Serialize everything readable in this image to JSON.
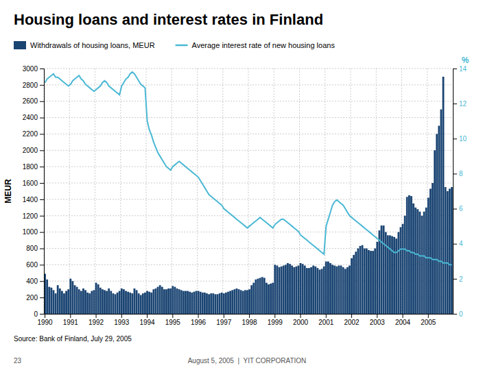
{
  "chart_data": {
    "type": "bar",
    "title": "Housing loans and interest rates in Finland",
    "ylabel": "MEUR",
    "y2label": "%",
    "annotations": [
      "Source: Bank of Finland, July 29, 2005",
      "23",
      "August 5, 2005  |  YIT CORPORATION"
    ],
    "grid": true,
    "legend": "top",
    "ylim": [
      0,
      3000
    ],
    "yticks": [
      0,
      200,
      400,
      600,
      800,
      1000,
      1200,
      1400,
      1600,
      1800,
      2000,
      2200,
      2400,
      2600,
      2800,
      3000
    ],
    "y2lim": [
      0,
      14
    ],
    "y2ticks": [
      0,
      2,
      4,
      6,
      8,
      10,
      12,
      14
    ],
    "categories": [
      "1990",
      null,
      null,
      null,
      null,
      null,
      null,
      null,
      null,
      null,
      null,
      null,
      "1991",
      null,
      null,
      null,
      null,
      null,
      null,
      null,
      null,
      null,
      null,
      null,
      "1992",
      null,
      null,
      null,
      null,
      null,
      null,
      null,
      null,
      null,
      null,
      null,
      "1993",
      null,
      null,
      null,
      null,
      null,
      null,
      null,
      null,
      null,
      null,
      null,
      "1994",
      null,
      null,
      null,
      null,
      null,
      null,
      null,
      null,
      null,
      null,
      null,
      "1995",
      null,
      null,
      null,
      null,
      null,
      null,
      null,
      null,
      null,
      null,
      null,
      "1996",
      null,
      null,
      null,
      null,
      null,
      null,
      null,
      null,
      null,
      null,
      null,
      "1997",
      null,
      null,
      null,
      null,
      null,
      null,
      null,
      null,
      null,
      null,
      null,
      "1998",
      null,
      null,
      null,
      null,
      null,
      null,
      null,
      null,
      null,
      null,
      null,
      "1999",
      null,
      null,
      null,
      null,
      null,
      null,
      null,
      null,
      null,
      null,
      null,
      "2000",
      null,
      null,
      null,
      null,
      null,
      null,
      null,
      null,
      null,
      null,
      null,
      "2001",
      null,
      null,
      null,
      null,
      null,
      null,
      null,
      null,
      null,
      null,
      null,
      "2002",
      null,
      null,
      null,
      null,
      null,
      null,
      null,
      null,
      null,
      null,
      null,
      "2003",
      null,
      null,
      null,
      null,
      null,
      null,
      null,
      null,
      null,
      null,
      null,
      "2004",
      null,
      null,
      null,
      null,
      null,
      null,
      null,
      null,
      null,
      null,
      null,
      "2005",
      null,
      null,
      null,
      null,
      null,
      null,
      null,
      null,
      null,
      null,
      null
    ],
    "series": [
      {
        "name": "Withdrawals of housing loans, MEUR",
        "type": "bar",
        "color": "#1a4472",
        "values": [
          490,
          420,
          330,
          320,
          290,
          250,
          350,
          310,
          280,
          250,
          280,
          300,
          430,
          400,
          350,
          330,
          300,
          280,
          310,
          290,
          260,
          250,
          280,
          290,
          380,
          360,
          320,
          300,
          290,
          280,
          310,
          280,
          250,
          240,
          260,
          280,
          310,
          300,
          280,
          270,
          260,
          250,
          310,
          290,
          250,
          230,
          250,
          260,
          280,
          270,
          260,
          300,
          310,
          330,
          350,
          330,
          300,
          300,
          310,
          310,
          340,
          330,
          310,
          300,
          290,
          280,
          280,
          280,
          270,
          260,
          270,
          280,
          280,
          270,
          260,
          260,
          250,
          240,
          250,
          250,
          240,
          240,
          250,
          260,
          250,
          260,
          270,
          280,
          290,
          300,
          310,
          300,
          290,
          280,
          290,
          290,
          300,
          350,
          380,
          420,
          430,
          440,
          450,
          440,
          380,
          360,
          370,
          380,
          600,
          590,
          570,
          580,
          590,
          600,
          620,
          610,
          590,
          570,
          580,
          590,
          620,
          610,
          590,
          560,
          560,
          570,
          590,
          580,
          560,
          540,
          550,
          580,
          640,
          640,
          620,
          600,
          590,
          580,
          590,
          590,
          570,
          550,
          570,
          590,
          680,
          720,
          760,
          800,
          830,
          840,
          800,
          800,
          780,
          770,
          770,
          800,
          880,
          1020,
          1080,
          1080,
          1000,
          960,
          960,
          950,
          940,
          920,
          1000,
          1060,
          1100,
          1200,
          1430,
          1450,
          1440,
          1350,
          1300,
          1280,
          1250,
          1200,
          1250,
          1300,
          1420,
          1530,
          1600,
          2000,
          2200,
          2300,
          2500,
          2900,
          1550,
          1500,
          1530,
          1550
        ]
      },
      {
        "name": "Average interest rate of new housing loans",
        "type": "line",
        "axis": "y2",
        "color": "#4ab8d4",
        "values": [
          13.2,
          13.4,
          13.5,
          13.6,
          13.7,
          13.5,
          13.5,
          13.4,
          13.3,
          13.2,
          13.1,
          13.0,
          13.1,
          13.3,
          13.4,
          13.5,
          13.6,
          13.4,
          13.3,
          13.1,
          13.0,
          12.9,
          12.8,
          12.7,
          12.8,
          12.9,
          13.0,
          13.2,
          13.3,
          13.2,
          13.0,
          12.9,
          12.8,
          12.7,
          12.6,
          12.5,
          13.0,
          13.2,
          13.4,
          13.5,
          13.7,
          13.8,
          13.7,
          13.5,
          13.3,
          13.1,
          13.0,
          12.9,
          11.0,
          10.5,
          10.2,
          9.8,
          9.5,
          9.2,
          9.0,
          8.8,
          8.6,
          8.4,
          8.3,
          8.2,
          8.4,
          8.5,
          8.6,
          8.7,
          8.6,
          8.5,
          8.4,
          8.3,
          8.2,
          8.1,
          8.0,
          7.9,
          7.8,
          7.6,
          7.4,
          7.2,
          7.0,
          6.8,
          6.7,
          6.6,
          6.5,
          6.4,
          6.3,
          6.2,
          6.0,
          5.9,
          5.8,
          5.7,
          5.6,
          5.5,
          5.4,
          5.3,
          5.2,
          5.1,
          5.0,
          4.9,
          5.0,
          5.1,
          5.2,
          5.3,
          5.4,
          5.5,
          5.4,
          5.3,
          5.2,
          5.1,
          5.0,
          4.9,
          5.1,
          5.2,
          5.3,
          5.4,
          5.4,
          5.3,
          5.2,
          5.1,
          5.0,
          4.9,
          4.8,
          4.7,
          4.5,
          4.4,
          4.3,
          4.2,
          4.1,
          4.0,
          3.9,
          3.8,
          3.7,
          3.6,
          3.5,
          3.4,
          5.0,
          5.4,
          5.8,
          6.2,
          6.4,
          6.5,
          6.4,
          6.3,
          6.2,
          6.0,
          5.8,
          5.6,
          5.5,
          5.4,
          5.3,
          5.2,
          5.1,
          5.0,
          4.9,
          4.8,
          4.7,
          4.6,
          4.5,
          4.4,
          4.3,
          4.2,
          4.1,
          4.0,
          3.9,
          3.8,
          3.7,
          3.6,
          3.5,
          3.5,
          3.6,
          3.7,
          3.7,
          3.7,
          3.6,
          3.6,
          3.5,
          3.5,
          3.4,
          3.4,
          3.3,
          3.3,
          3.3,
          3.2,
          3.2,
          3.2,
          3.1,
          3.1,
          3.1,
          3.0,
          3.0,
          2.9,
          2.9,
          2.9,
          2.8,
          2.8
        ]
      }
    ]
  }
}
